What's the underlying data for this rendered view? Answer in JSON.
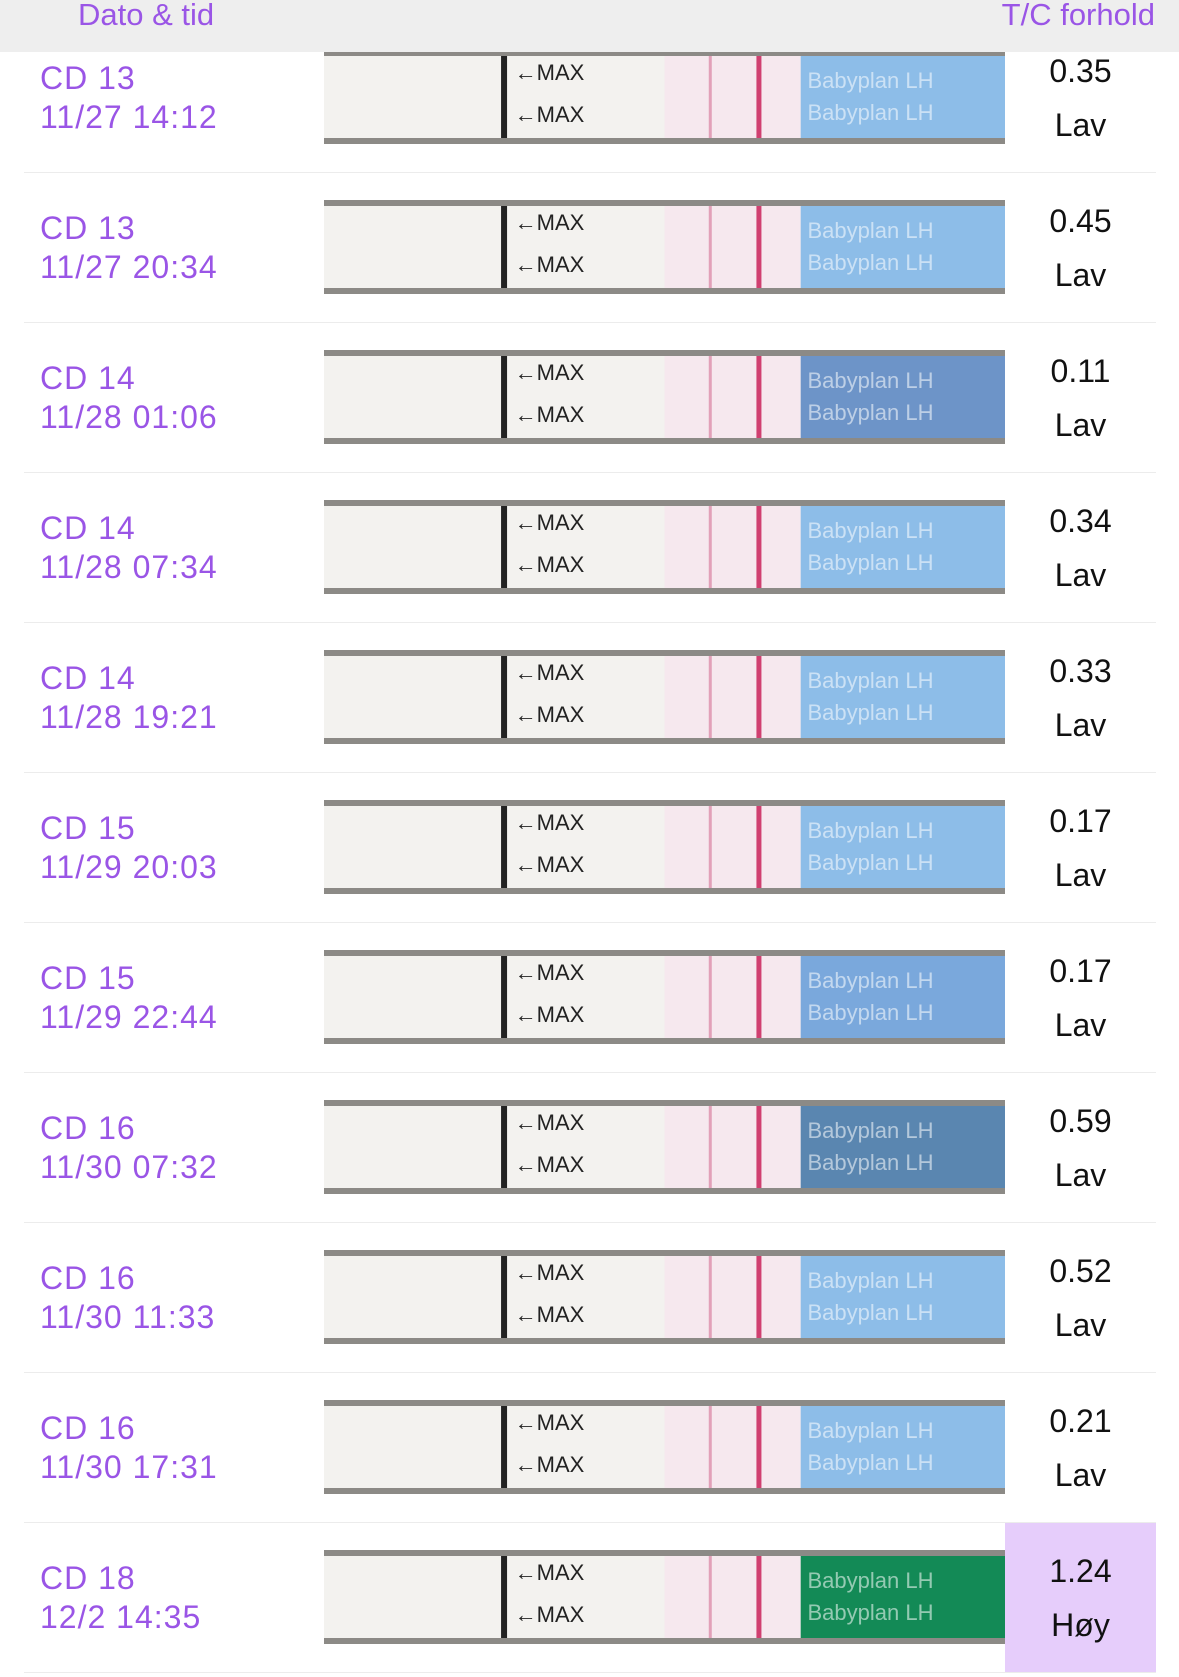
{
  "header": {
    "left": "Dato & tid",
    "right": "T/C forhold"
  },
  "strip": {
    "mark": "←MAX",
    "brand": "Babyplan LH"
  },
  "rows": [
    {
      "cd": "CD 13",
      "time": "11/27 14:12",
      "ratio": "0.35",
      "level": "Lav",
      "highlight": false,
      "strip_color": "#8dbde8"
    },
    {
      "cd": "CD 13",
      "time": "11/27 20:34",
      "ratio": "0.45",
      "level": "Lav",
      "highlight": false,
      "strip_color": "#8dbde8"
    },
    {
      "cd": "CD 14",
      "time": "11/28 01:06",
      "ratio": "0.11",
      "level": "Lav",
      "highlight": false,
      "strip_color": "#6d94c8"
    },
    {
      "cd": "CD 14",
      "time": "11/28 07:34",
      "ratio": "0.34",
      "level": "Lav",
      "highlight": false,
      "strip_color": "#8dbde8"
    },
    {
      "cd": "CD 14",
      "time": "11/28 19:21",
      "ratio": "0.33",
      "level": "Lav",
      "highlight": false,
      "strip_color": "#8dbde8"
    },
    {
      "cd": "CD 15",
      "time": "11/29 20:03",
      "ratio": "0.17",
      "level": "Lav",
      "highlight": false,
      "strip_color": "#8dbde8"
    },
    {
      "cd": "CD 15",
      "time": "11/29 22:44",
      "ratio": "0.17",
      "level": "Lav",
      "highlight": false,
      "strip_color": "#7aa8dc"
    },
    {
      "cd": "CD 16",
      "time": "11/30 07:32",
      "ratio": "0.59",
      "level": "Lav",
      "highlight": false,
      "strip_color": "#5a86b0"
    },
    {
      "cd": "CD 16",
      "time": "11/30 11:33",
      "ratio": "0.52",
      "level": "Lav",
      "highlight": false,
      "strip_color": "#8dbde8"
    },
    {
      "cd": "CD 16",
      "time": "11/30 17:31",
      "ratio": "0.21",
      "level": "Lav",
      "highlight": false,
      "strip_color": "#8dbde8"
    },
    {
      "cd": "CD 18",
      "time": "12/2 14:35",
      "ratio": "1.24",
      "level": "Høy",
      "highlight": true,
      "strip_color": "#138a56"
    }
  ]
}
